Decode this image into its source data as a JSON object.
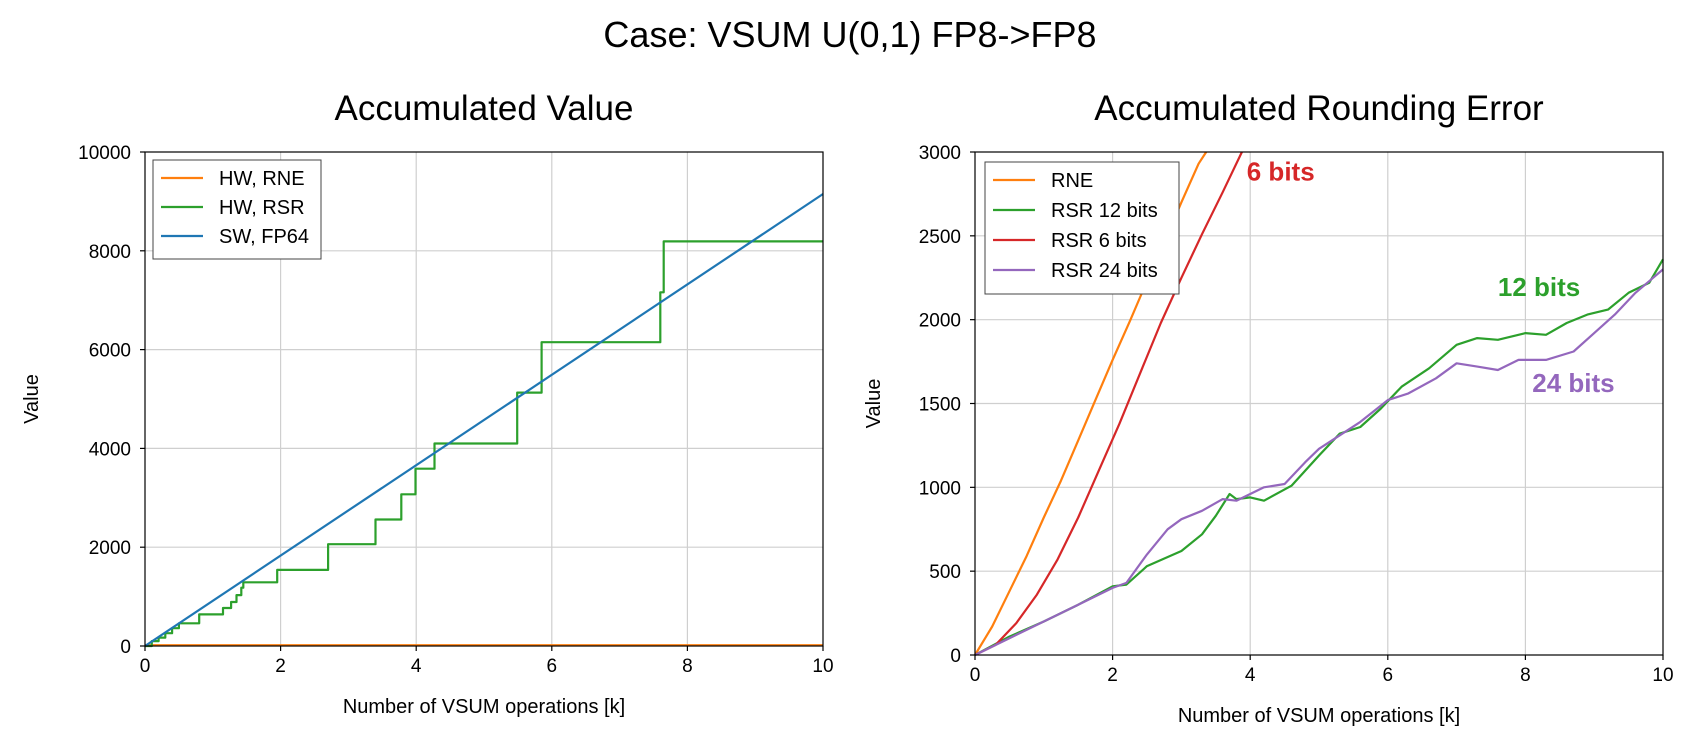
{
  "figure": {
    "suptitle": "Case: VSUM U(0,1) FP8->FP8"
  },
  "chart_data": [
    {
      "type": "line",
      "title": "Accumulated Value",
      "xlabel": "Number of VSUM operations [k]",
      "ylabel": "Value",
      "xlim": [
        0,
        10
      ],
      "ylim": [
        0,
        10000
      ],
      "xticks": [
        0,
        2,
        4,
        6,
        8,
        10
      ],
      "yticks": [
        0,
        2000,
        4000,
        6000,
        8000,
        10000
      ],
      "grid": true,
      "legend_position": "top-left",
      "series": [
        {
          "name": "HW, RNE",
          "color": "#ff7f0e",
          "x": [
            0,
            10
          ],
          "y": [
            16,
            16
          ]
        },
        {
          "name": "HW, RSR",
          "color": "#2ca02c",
          "step": true,
          "x": [
            0,
            0.1,
            0.2,
            0.3,
            0.4,
            0.5,
            0.62,
            0.8,
            1.0,
            1.15,
            1.27,
            1.35,
            1.42,
            1.45,
            1.95,
            2.7,
            3.4,
            3.78,
            3.99,
            4.27,
            5.49,
            5.85,
            7.6,
            7.65,
            10
          ],
          "y": [
            0,
            100,
            170,
            260,
            360,
            460,
            460,
            640,
            640,
            770,
            890,
            1030,
            1180,
            1290,
            1540,
            2060,
            2560,
            3070,
            3590,
            4100,
            5130,
            6150,
            7160,
            8190,
            8190
          ]
        },
        {
          "name": "SW, FP64",
          "color": "#1f77b4",
          "x": [
            0,
            10
          ],
          "y": [
            0,
            9150
          ]
        }
      ]
    },
    {
      "type": "line",
      "title": "Accumulated Rounding Error",
      "xlabel": "Number of VSUM operations [k]",
      "ylabel": "Value",
      "xlim": [
        0,
        10
      ],
      "ylim": [
        0,
        3000
      ],
      "xticks": [
        0,
        2,
        4,
        6,
        8,
        10
      ],
      "yticks": [
        0,
        500,
        1000,
        1500,
        2000,
        2500,
        3000
      ],
      "grid": true,
      "legend_position": "top-left",
      "annotations": [
        {
          "text": "6 bits",
          "x": 3.95,
          "y": 2830,
          "color": "#d62728"
        },
        {
          "text": "12 bits",
          "x": 7.6,
          "y": 2140,
          "color": "#2ca02c"
        },
        {
          "text": "24 bits",
          "x": 8.1,
          "y": 1570,
          "color": "#9467bd"
        }
      ],
      "series": [
        {
          "name": "RNE",
          "color": "#ff7f0e",
          "x": [
            0,
            0.25,
            0.5,
            0.75,
            1.0,
            1.25,
            1.5,
            1.75,
            2.0,
            2.25,
            2.5,
            2.75,
            3.0,
            3.25,
            3.36
          ],
          "y": [
            0,
            170,
            380,
            590,
            820,
            1040,
            1280,
            1520,
            1760,
            1990,
            2230,
            2460,
            2700,
            2930,
            3000
          ]
        },
        {
          "name": "RSR 12 bits",
          "color": "#2ca02c",
          "x": [
            0,
            0.5,
            1.0,
            1.5,
            2.0,
            2.2,
            2.5,
            3.0,
            3.3,
            3.5,
            3.7,
            3.8,
            4.0,
            4.2,
            4.6,
            5.0,
            5.3,
            5.6,
            5.9,
            6.2,
            6.6,
            7.0,
            7.3,
            7.6,
            8.0,
            8.3,
            8.6,
            8.9,
            9.2,
            9.5,
            9.8,
            10.0
          ],
          "y": [
            0,
            110,
            200,
            300,
            410,
            420,
            530,
            620,
            720,
            830,
            960,
            930,
            940,
            920,
            1010,
            1190,
            1320,
            1360,
            1470,
            1600,
            1710,
            1850,
            1890,
            1880,
            1920,
            1910,
            1980,
            2030,
            2060,
            2160,
            2220,
            2360
          ]
        },
        {
          "name": "RSR 6 bits",
          "color": "#d62728",
          "x": [
            0,
            0.3,
            0.6,
            0.9,
            1.2,
            1.5,
            1.8,
            2.1,
            2.4,
            2.7,
            3.0,
            3.3,
            3.6,
            3.88
          ],
          "y": [
            0,
            60,
            190,
            360,
            570,
            820,
            1100,
            1380,
            1680,
            1980,
            2250,
            2510,
            2760,
            3000
          ]
        },
        {
          "name": "RSR 24 bits",
          "color": "#9467bd",
          "x": [
            0,
            0.5,
            1.0,
            1.5,
            2.0,
            2.2,
            2.5,
            2.8,
            3.0,
            3.3,
            3.6,
            3.8,
            4.0,
            4.2,
            4.5,
            4.8,
            5.0,
            5.3,
            5.6,
            6.0,
            6.3,
            6.7,
            7.0,
            7.3,
            7.6,
            7.9,
            8.3,
            8.7,
            9.0,
            9.3,
            9.6,
            10.0
          ],
          "y": [
            0,
            100,
            200,
            300,
            400,
            430,
            600,
            750,
            810,
            860,
            930,
            920,
            960,
            1000,
            1020,
            1150,
            1230,
            1310,
            1390,
            1520,
            1560,
            1650,
            1740,
            1720,
            1700,
            1760,
            1760,
            1810,
            1920,
            2030,
            2160,
            2300
          ]
        }
      ]
    }
  ]
}
